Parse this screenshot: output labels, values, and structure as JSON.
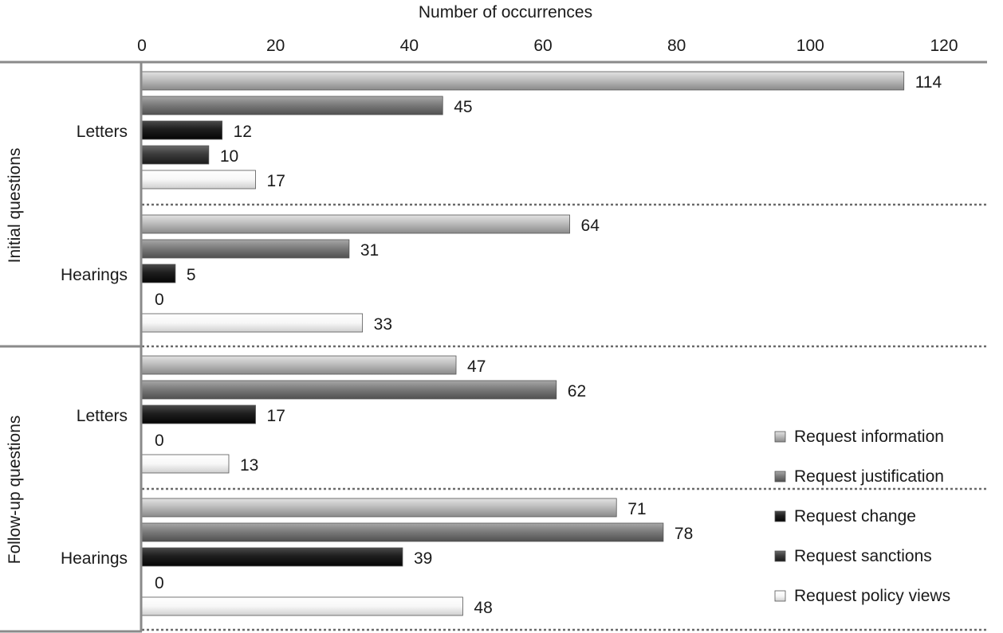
{
  "chart_data": {
    "type": "bar",
    "orientation": "horizontal",
    "xlabel": "Number of occurrences",
    "xlim": [
      0,
      120
    ],
    "xticks": [
      0,
      20,
      40,
      60,
      80,
      100,
      120
    ],
    "xaxis_position": "top",
    "legend_position": "bottom-right",
    "groups": [
      {
        "label": "Initial questions",
        "categories": [
          {
            "label": "Letters",
            "values": [
              114,
              45,
              12,
              10,
              17
            ]
          },
          {
            "label": "Hearings",
            "values": [
              64,
              31,
              5,
              0,
              33
            ]
          }
        ]
      },
      {
        "label": "Follow-up questions",
        "categories": [
          {
            "label": "Letters",
            "values": [
              47,
              62,
              17,
              0,
              13
            ]
          },
          {
            "label": "Hearings",
            "values": [
              71,
              78,
              39,
              0,
              48
            ]
          }
        ]
      }
    ],
    "series": [
      {
        "name": "Request information",
        "color": "#b3b3b3"
      },
      {
        "name": "Request justification",
        "color": "#7a7a7a"
      },
      {
        "name": "Request change",
        "color": "#1e1e1e"
      },
      {
        "name": "Request sanctions",
        "color": "#3c3c3c"
      },
      {
        "name": "Request policy views",
        "color": "#f4f4f4"
      }
    ]
  }
}
